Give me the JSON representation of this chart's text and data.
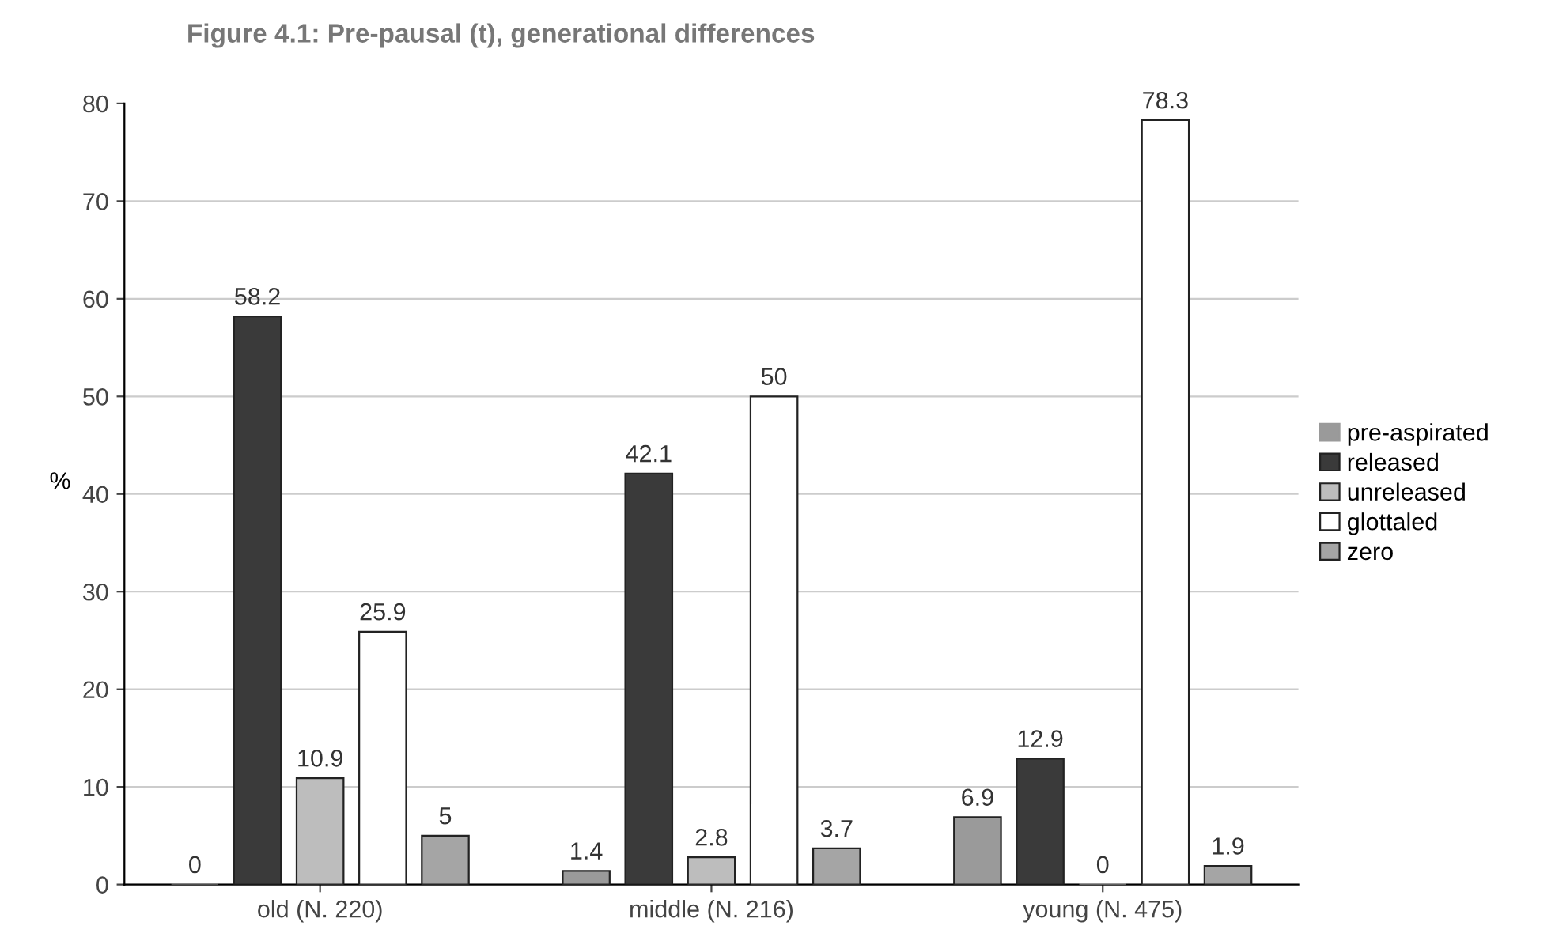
{
  "chart_data": {
    "type": "bar",
    "title": "Figure 4.1: Pre-pausal (t), generational differences",
    "ylabel": "%",
    "categories": [
      "old (N. 220)",
      "middle (N. 216)",
      "young (N. 475)"
    ],
    "series": [
      {
        "name": "pre-aspirated",
        "color": "#9a9a9a",
        "values": [
          0,
          1.4,
          6.9
        ]
      },
      {
        "name": "released",
        "color": "#3a3a3a",
        "values": [
          58.2,
          42.1,
          12.9
        ]
      },
      {
        "name": "unreleased",
        "color": "#bdbdbd",
        "values": [
          10.9,
          2.8,
          0
        ]
      },
      {
        "name": "glottaled",
        "color": "#ffffff",
        "values": [
          25.9,
          50,
          78.3
        ]
      },
      {
        "name": "zero",
        "color": "#a5a5a5",
        "values": [
          5,
          3.7,
          1.9
        ]
      }
    ],
    "ylim": [
      0,
      80
    ],
    "yticks": [
      0,
      10,
      20,
      30,
      40,
      50,
      60,
      70,
      80
    ],
    "grid": "y",
    "legend": "right",
    "data_labels": true
  }
}
